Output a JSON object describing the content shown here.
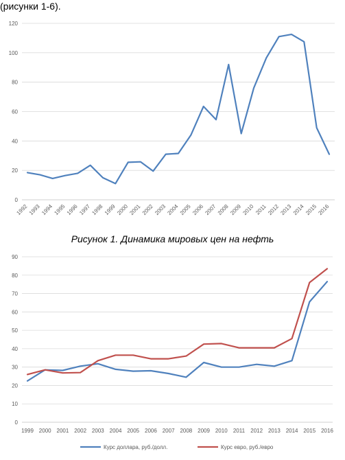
{
  "header": {
    "text": "(рисунки 1-6)."
  },
  "figure1": {
    "caption": "Рисунок 1. Динамика мировых цен на нефть"
  },
  "chart_data": [
    {
      "type": "line",
      "title": "",
      "xlabel": "",
      "ylabel": "",
      "ylim": [
        0,
        120
      ],
      "yticks": [
        0,
        20,
        40,
        60,
        80,
        100,
        120
      ],
      "grid": true,
      "categories": [
        "1992",
        "1993",
        "1994",
        "1995",
        "1996",
        "1997",
        "1998",
        "1999",
        "2000",
        "2001",
        "2002",
        "2003",
        "2004",
        "2005",
        "2006",
        "2007",
        "2008",
        "2009",
        "2010",
        "2011",
        "2012",
        "2013",
        "2014",
        "2015",
        "2016"
      ],
      "series": [
        {
          "color": "#4f81bd",
          "values": [
            18.5,
            17,
            14.5,
            16.5,
            18,
            23.5,
            15,
            11,
            25.5,
            25.8,
            19.5,
            31,
            31.5,
            44,
            63.5,
            54.5,
            92,
            45,
            76,
            96.5,
            111,
            112.5,
            107.5,
            49,
            31
          ]
        }
      ]
    },
    {
      "type": "line",
      "title": "",
      "xlabel": "",
      "ylabel": "",
      "ylim": [
        0,
        90
      ],
      "yticks": [
        0,
        10,
        20,
        30,
        40,
        50,
        60,
        70,
        80,
        90
      ],
      "grid": true,
      "legend": "bottom",
      "categories": [
        "1999",
        "2000",
        "2001",
        "2002",
        "2003",
        "2004",
        "2005",
        "2006",
        "2007",
        "2008",
        "2009",
        "2010",
        "2011",
        "2012",
        "2013",
        "2014",
        "2015",
        "2016"
      ],
      "series": [
        {
          "name": "Курс доллара, руб./долл.",
          "color": "#4f81bd",
          "values": [
            22.5,
            28.5,
            28.2,
            30.5,
            31.8,
            28.8,
            27.8,
            28,
            26.5,
            24.5,
            32.5,
            30,
            30,
            31.5,
            30.5,
            33.5,
            65.5,
            76.5
          ]
        },
        {
          "name": "Курс евро, руб./евро",
          "color": "#c0504d",
          "values": [
            26,
            28.5,
            26.8,
            27,
            33.5,
            36.5,
            36.5,
            34.5,
            34.5,
            36,
            42.5,
            42.8,
            40.5,
            40.5,
            40.5,
            45.5,
            76,
            83.5
          ]
        }
      ]
    }
  ]
}
